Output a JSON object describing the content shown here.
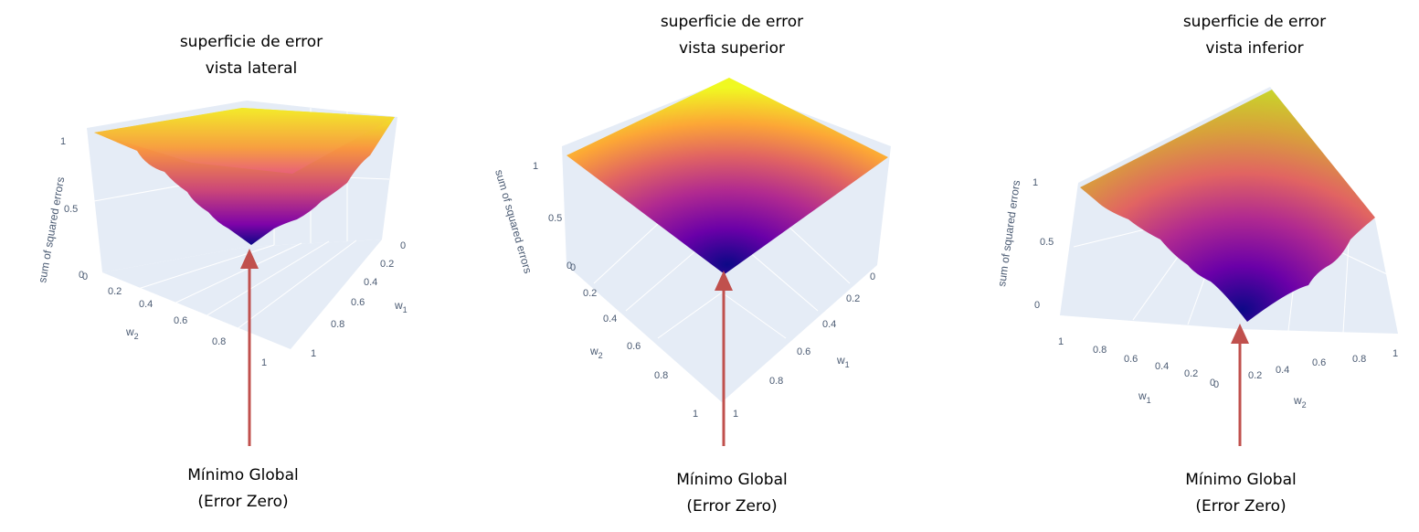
{
  "chart_data": [
    {
      "type": "surface",
      "title_line1": "superficie de error",
      "title_line2": "vista lateral",
      "zlabel": "sum of squared errors",
      "xlabel": "w",
      "xlabel_sub": "1",
      "ylabel": "w",
      "ylabel_sub": "2",
      "z_ticks": [
        "0",
        "0.5",
        "1"
      ],
      "w1_ticks": [
        "0",
        "0.2",
        "0.4",
        "0.6",
        "0.8",
        "1"
      ],
      "w2_ticks": [
        "0",
        "0.2",
        "0.4",
        "0.6",
        "0.8",
        "1"
      ],
      "xlim": [
        0,
        1
      ],
      "ylim": [
        0,
        1
      ],
      "zlim": [
        0,
        1
      ],
      "minimum": {
        "w1": 0,
        "w2": 0,
        "error": 0
      },
      "colorscale": [
        "#0d0887",
        "#7e03a8",
        "#cc4778",
        "#f89540",
        "#f0f921"
      ],
      "caption_line1": "Mínimo Global",
      "caption_line2": "(Error Zero)"
    },
    {
      "type": "surface",
      "title_line1": "superficie de error",
      "title_line2": "vista superior",
      "zlabel": "sum of squared errors",
      "xlabel": "w",
      "xlabel_sub": "1",
      "ylabel": "w",
      "ylabel_sub": "2",
      "z_ticks": [
        "0",
        "0.5",
        "1"
      ],
      "w1_ticks": [
        "0",
        "0.2",
        "0.4",
        "0.6",
        "0.8",
        "1"
      ],
      "w2_ticks": [
        "0",
        "0.2",
        "0.4",
        "0.6",
        "0.8",
        "1"
      ],
      "xlim": [
        0,
        1
      ],
      "ylim": [
        0,
        1
      ],
      "zlim": [
        0,
        1
      ],
      "minimum": {
        "w1": 0,
        "w2": 0,
        "error": 0
      },
      "colorscale": [
        "#0d0887",
        "#7e03a8",
        "#cc4778",
        "#f89540",
        "#f0f921"
      ],
      "caption_line1": "Mínimo Global",
      "caption_line2": "(Error Zero)"
    },
    {
      "type": "surface",
      "title_line1": "superficie de error",
      "title_line2": "vista inferior",
      "zlabel": "sum of squared errors",
      "xlabel": "w",
      "xlabel_sub": "1",
      "ylabel": "w",
      "ylabel_sub": "2",
      "z_ticks": [
        "0",
        "0.5",
        "1"
      ],
      "w1_ticks": [
        "1",
        "0.8",
        "0.6",
        "0.4",
        "0.2",
        "0"
      ],
      "w2_ticks": [
        "0",
        "0.2",
        "0.4",
        "0.6",
        "0.8",
        "1"
      ],
      "xlim": [
        0,
        1
      ],
      "ylim": [
        0,
        1
      ],
      "zlim": [
        0,
        1
      ],
      "minimum": {
        "w1": 0,
        "w2": 0,
        "error": 0
      },
      "colorscale": [
        "#0d0887",
        "#7e03a8",
        "#cc4778",
        "#f89540",
        "#f0f921"
      ],
      "caption_line1": "Mínimo Global",
      "caption_line2": "(Error Zero)"
    }
  ],
  "arrow_color": "#c0504d",
  "scene_bg": "#e5ecf6",
  "grid_color": "#ffffff"
}
